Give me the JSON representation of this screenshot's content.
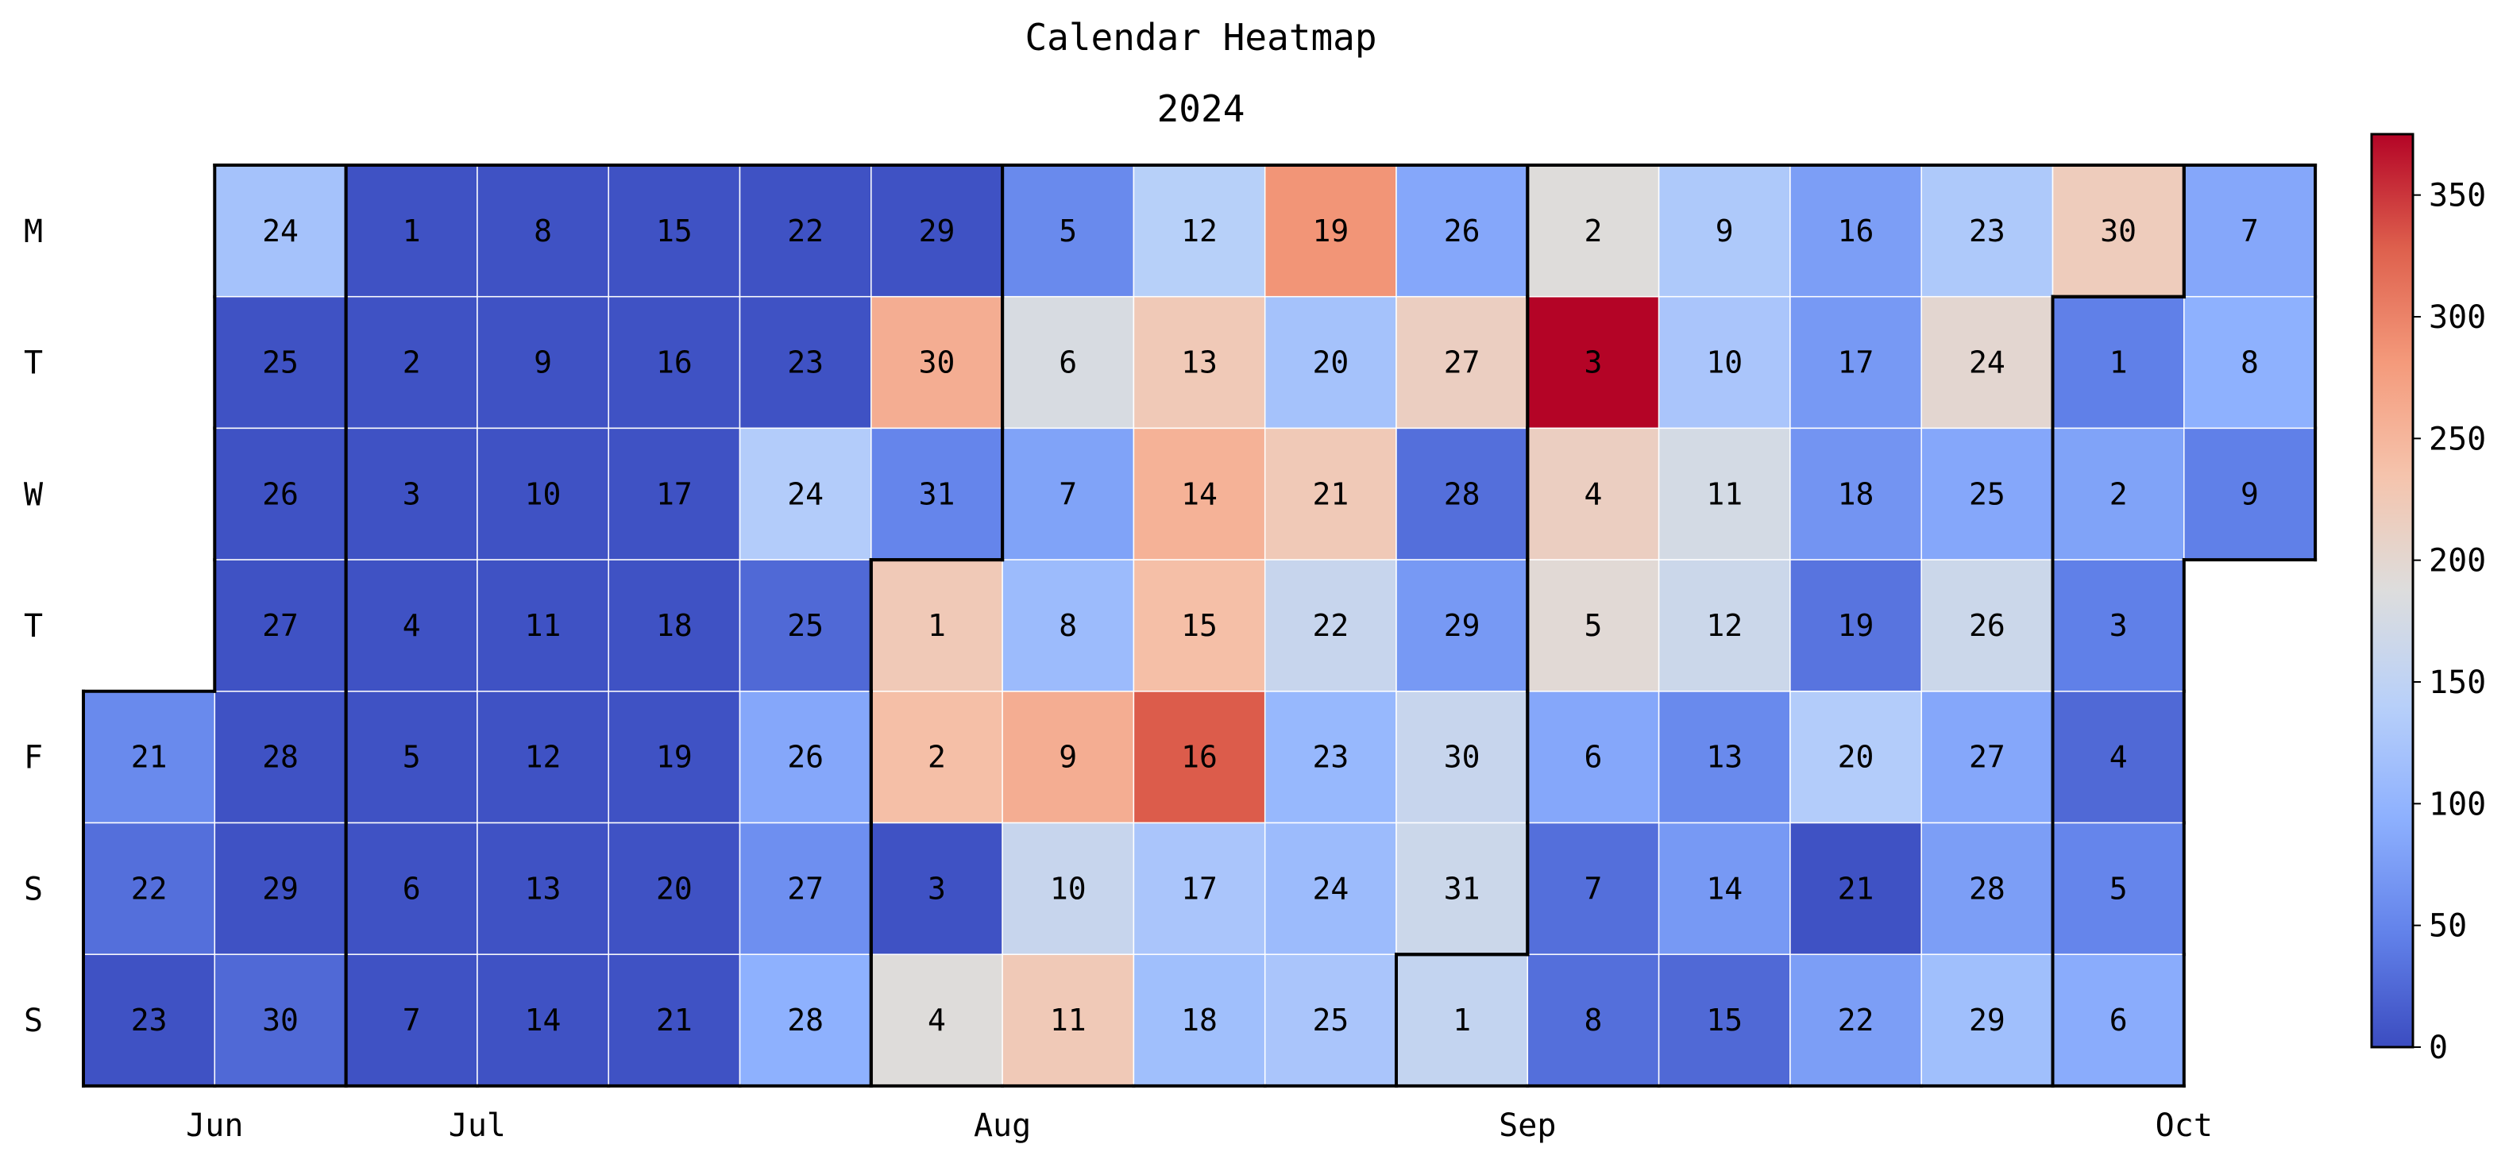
{
  "chart_data": {
    "type": "heatmap",
    "title": "Calendar Heatmap",
    "subtitle": "2024",
    "weekday_labels": [
      "M",
      "T",
      "W",
      "T",
      "F",
      "S",
      "S"
    ],
    "month_labels": [
      "Jun",
      "Jul",
      "Aug",
      "Sep",
      "Oct"
    ],
    "colorbar": {
      "min": 0,
      "max": 375,
      "ticks": [
        0,
        50,
        100,
        150,
        200,
        250,
        300,
        350
      ],
      "colormap": "coolwarm"
    },
    "grid": false,
    "legend": "colorbar-right",
    "days": [
      {
        "date": "2024-06-21",
        "day": "21",
        "value": 55
      },
      {
        "date": "2024-06-22",
        "day": "22",
        "value": 30
      },
      {
        "date": "2024-06-23",
        "day": "23",
        "value": 5
      },
      {
        "date": "2024-06-24",
        "day": "24",
        "value": 120
      },
      {
        "date": "2024-06-25",
        "day": "25",
        "value": 5
      },
      {
        "date": "2024-06-26",
        "day": "26",
        "value": 5
      },
      {
        "date": "2024-06-27",
        "day": "27",
        "value": 5
      },
      {
        "date": "2024-06-28",
        "day": "28",
        "value": 5
      },
      {
        "date": "2024-06-29",
        "day": "29",
        "value": 5
      },
      {
        "date": "2024-06-30",
        "day": "30",
        "value": 25
      },
      {
        "date": "2024-07-01",
        "day": "1",
        "value": 5
      },
      {
        "date": "2024-07-02",
        "day": "2",
        "value": 5
      },
      {
        "date": "2024-07-03",
        "day": "3",
        "value": 5
      },
      {
        "date": "2024-07-04",
        "day": "4",
        "value": 5
      },
      {
        "date": "2024-07-05",
        "day": "5",
        "value": 5
      },
      {
        "date": "2024-07-06",
        "day": "6",
        "value": 5
      },
      {
        "date": "2024-07-07",
        "day": "7",
        "value": 5
      },
      {
        "date": "2024-07-08",
        "day": "8",
        "value": 5
      },
      {
        "date": "2024-07-09",
        "day": "9",
        "value": 5
      },
      {
        "date": "2024-07-10",
        "day": "10",
        "value": 5
      },
      {
        "date": "2024-07-11",
        "day": "11",
        "value": 5
      },
      {
        "date": "2024-07-12",
        "day": "12",
        "value": 5
      },
      {
        "date": "2024-07-13",
        "day": "13",
        "value": 5
      },
      {
        "date": "2024-07-14",
        "day": "14",
        "value": 5
      },
      {
        "date": "2024-07-15",
        "day": "15",
        "value": 5
      },
      {
        "date": "2024-07-16",
        "day": "16",
        "value": 5
      },
      {
        "date": "2024-07-17",
        "day": "17",
        "value": 5
      },
      {
        "date": "2024-07-18",
        "day": "18",
        "value": 5
      },
      {
        "date": "2024-07-19",
        "day": "19",
        "value": 5
      },
      {
        "date": "2024-07-20",
        "day": "20",
        "value": 5
      },
      {
        "date": "2024-07-21",
        "day": "21",
        "value": 5
      },
      {
        "date": "2024-07-22",
        "day": "22",
        "value": 5
      },
      {
        "date": "2024-07-23",
        "day": "23",
        "value": 5
      },
      {
        "date": "2024-07-24",
        "day": "24",
        "value": 135
      },
      {
        "date": "2024-07-25",
        "day": "25",
        "value": 25
      },
      {
        "date": "2024-07-26",
        "day": "26",
        "value": 85
      },
      {
        "date": "2024-07-27",
        "day": "27",
        "value": 60
      },
      {
        "date": "2024-07-28",
        "day": "28",
        "value": 95
      },
      {
        "date": "2024-07-29",
        "day": "29",
        "value": 5
      },
      {
        "date": "2024-07-30",
        "day": "30",
        "value": 260
      },
      {
        "date": "2024-07-31",
        "day": "31",
        "value": 50
      },
      {
        "date": "2024-08-01",
        "day": "1",
        "value": 225
      },
      {
        "date": "2024-08-02",
        "day": "2",
        "value": 240
      },
      {
        "date": "2024-08-03",
        "day": "3",
        "value": 5
      },
      {
        "date": "2024-08-04",
        "day": "4",
        "value": 190
      },
      {
        "date": "2024-08-05",
        "day": "5",
        "value": 55
      },
      {
        "date": "2024-08-06",
        "day": "6",
        "value": 180
      },
      {
        "date": "2024-08-07",
        "day": "7",
        "value": 80
      },
      {
        "date": "2024-08-08",
        "day": "8",
        "value": 110
      },
      {
        "date": "2024-08-09",
        "day": "9",
        "value": 260
      },
      {
        "date": "2024-08-10",
        "day": "10",
        "value": 160
      },
      {
        "date": "2024-08-11",
        "day": "11",
        "value": 225
      },
      {
        "date": "2024-08-12",
        "day": "12",
        "value": 140
      },
      {
        "date": "2024-08-13",
        "day": "13",
        "value": 225
      },
      {
        "date": "2024-08-14",
        "day": "14",
        "value": 255
      },
      {
        "date": "2024-08-15",
        "day": "15",
        "value": 240
      },
      {
        "date": "2024-08-16",
        "day": "16",
        "value": 330
      },
      {
        "date": "2024-08-17",
        "day": "17",
        "value": 125
      },
      {
        "date": "2024-08-18",
        "day": "18",
        "value": 115
      },
      {
        "date": "2024-08-19",
        "day": "19",
        "value": 285
      },
      {
        "date": "2024-08-20",
        "day": "20",
        "value": 120
      },
      {
        "date": "2024-08-21",
        "day": "21",
        "value": 225
      },
      {
        "date": "2024-08-22",
        "day": "22",
        "value": 160
      },
      {
        "date": "2024-08-23",
        "day": "23",
        "value": 105
      },
      {
        "date": "2024-08-24",
        "day": "24",
        "value": 110
      },
      {
        "date": "2024-08-25",
        "day": "25",
        "value": 125
      },
      {
        "date": "2024-08-26",
        "day": "26",
        "value": 85
      },
      {
        "date": "2024-08-27",
        "day": "27",
        "value": 215
      },
      {
        "date": "2024-08-28",
        "day": "28",
        "value": 30
      },
      {
        "date": "2024-08-29",
        "day": "29",
        "value": 70
      },
      {
        "date": "2024-08-30",
        "day": "30",
        "value": 160
      },
      {
        "date": "2024-08-31",
        "day": "31",
        "value": 165
      },
      {
        "date": "2024-09-01",
        "day": "1",
        "value": 155
      },
      {
        "date": "2024-09-02",
        "day": "2",
        "value": 190
      },
      {
        "date": "2024-09-03",
        "day": "3",
        "value": 375
      },
      {
        "date": "2024-09-04",
        "day": "4",
        "value": 215
      },
      {
        "date": "2024-09-05",
        "day": "5",
        "value": 195
      },
      {
        "date": "2024-09-06",
        "day": "6",
        "value": 85
      },
      {
        "date": "2024-09-07",
        "day": "7",
        "value": 30
      },
      {
        "date": "2024-09-08",
        "day": "8",
        "value": 30
      },
      {
        "date": "2024-09-09",
        "day": "9",
        "value": 130
      },
      {
        "date": "2024-09-10",
        "day": "10",
        "value": 125
      },
      {
        "date": "2024-09-11",
        "day": "11",
        "value": 175
      },
      {
        "date": "2024-09-12",
        "day": "12",
        "value": 165
      },
      {
        "date": "2024-09-13",
        "day": "13",
        "value": 55
      },
      {
        "date": "2024-09-14",
        "day": "14",
        "value": 70
      },
      {
        "date": "2024-09-15",
        "day": "15",
        "value": 25
      },
      {
        "date": "2024-09-16",
        "day": "16",
        "value": 75
      },
      {
        "date": "2024-09-17",
        "day": "17",
        "value": 70
      },
      {
        "date": "2024-09-18",
        "day": "18",
        "value": 65
      },
      {
        "date": "2024-09-19",
        "day": "19",
        "value": 35
      },
      {
        "date": "2024-09-20",
        "day": "20",
        "value": 135
      },
      {
        "date": "2024-09-21",
        "day": "21",
        "value": 5
      },
      {
        "date": "2024-09-22",
        "day": "22",
        "value": 75
      },
      {
        "date": "2024-09-23",
        "day": "23",
        "value": 130
      },
      {
        "date": "2024-09-24",
        "day": "24",
        "value": 200
      },
      {
        "date": "2024-09-25",
        "day": "25",
        "value": 85
      },
      {
        "date": "2024-09-26",
        "day": "26",
        "value": 165
      },
      {
        "date": "2024-09-27",
        "day": "27",
        "value": 85
      },
      {
        "date": "2024-09-28",
        "day": "28",
        "value": 75
      },
      {
        "date": "2024-09-29",
        "day": "29",
        "value": 115
      },
      {
        "date": "2024-09-30",
        "day": "30",
        "value": 220
      },
      {
        "date": "2024-10-01",
        "day": "1",
        "value": 45
      },
      {
        "date": "2024-10-02",
        "day": "2",
        "value": 80
      },
      {
        "date": "2024-10-03",
        "day": "3",
        "value": 45
      },
      {
        "date": "2024-10-04",
        "day": "4",
        "value": 25
      },
      {
        "date": "2024-10-05",
        "day": "5",
        "value": 50
      },
      {
        "date": "2024-10-06",
        "day": "6",
        "value": 90
      },
      {
        "date": "2024-10-07",
        "day": "7",
        "value": 85
      },
      {
        "date": "2024-10-08",
        "day": "8",
        "value": 95
      },
      {
        "date": "2024-10-09",
        "day": "9",
        "value": 45
      }
    ]
  }
}
